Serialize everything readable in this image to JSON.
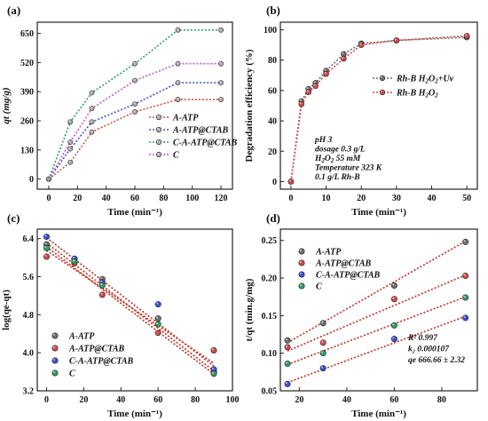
{
  "colors": {
    "a_atp": "#c8553d",
    "a_atp_ctab": "#3d4fd6",
    "c_a_atp_ctab": "#2e9e62",
    "c": "#c05ad6",
    "rh_uv": "#6e6e6e",
    "rh": "#d24a4a"
  },
  "chart_data": [
    {
      "panel": "(a)",
      "type": "line",
      "xlabel": "Time (min⁻¹)",
      "ylabel": "qt (mg/g)",
      "xlim": [
        -8,
        128
      ],
      "ylim": [
        -45,
        700
      ],
      "xticks": [
        0,
        20,
        40,
        60,
        80,
        100,
        120
      ],
      "yticks": [
        0,
        130,
        260,
        390,
        520,
        650
      ],
      "legend": "right",
      "x": [
        0,
        15,
        30,
        60,
        90,
        120
      ],
      "series": [
        {
          "name": "A-ATP",
          "color_key": "a_atp",
          "values": [
            0,
            75,
            210,
            300,
            355,
            355
          ]
        },
        {
          "name": "A-ATP@CTAB",
          "color_key": "a_atp_ctab",
          "values": [
            0,
            135,
            255,
            335,
            430,
            430
          ]
        },
        {
          "name": "C-A-ATP@CTAB",
          "color_key": "c_a_atp_ctab",
          "values": [
            0,
            255,
            385,
            515,
            665,
            665
          ]
        },
        {
          "name": "C",
          "color_key": "c",
          "values": [
            0,
            165,
            315,
            440,
            515,
            515
          ]
        }
      ]
    },
    {
      "panel": "(b)",
      "type": "line",
      "xlabel": "Time (min⁻¹)",
      "ylabel": "Degradation efficiency (%)",
      "xlim": [
        -3,
        53
      ],
      "ylim": [
        -5,
        105
      ],
      "xticks": [
        0,
        10,
        20,
        30,
        40,
        50
      ],
      "yticks": [
        0,
        20,
        40,
        60,
        80,
        100
      ],
      "legend": "center-right",
      "x": [
        0,
        3,
        5,
        7,
        10,
        15,
        20,
        30,
        50
      ],
      "series": [
        {
          "name": "Rh-B H2O2+Uv",
          "color_key": "rh_uv",
          "values": [
            0,
            53,
            61,
            65,
            73,
            84,
            91,
            93,
            95
          ]
        },
        {
          "name": "Rh-B H2O2",
          "color_key": "rh",
          "values": [
            0,
            51,
            59,
            63,
            71,
            81,
            90,
            93,
            96
          ]
        }
      ],
      "annotations": [
        "pH 3",
        "dosage  0.3 g/L",
        "H2O2 55 mM",
        "Temperature 323 K",
        "0.1 g/L Rh-B"
      ]
    },
    {
      "panel": "(c)",
      "type": "scatter",
      "xlabel": "Time (min⁻¹)",
      "ylabel": "log(qe-qt)",
      "xlim": [
        -5,
        100
      ],
      "ylim": [
        3.2,
        6.6
      ],
      "xticks": [
        0,
        20,
        40,
        60,
        80,
        100
      ],
      "yticks": [
        3.2,
        4.0,
        4.8,
        5.6,
        6.4
      ],
      "legend": "bottom-left",
      "x": [
        0,
        15,
        30,
        60,
        90
      ],
      "series": [
        {
          "name": "A-ATP",
          "color_key": "rh_uv",
          "values": [
            6.28,
            5.95,
            5.55,
            4.72,
            3.6
          ],
          "fit": [
            6.31,
            3.62
          ]
        },
        {
          "name": "A-ATP@CTAB",
          "color_key": "rh",
          "values": [
            6.02,
            5.88,
            5.22,
            4.42,
            4.05
          ],
          "fit": [
            6.15,
            3.78
          ]
        },
        {
          "name": "C-A-ATP@CTAB",
          "color_key": "a_atp_ctab",
          "values": [
            6.44,
            5.98,
            5.48,
            5.02,
            3.65
          ],
          "fit": [
            6.42,
            3.72
          ]
        },
        {
          "name": "C",
          "color_key": "c_a_atp_ctab",
          "values": [
            6.2,
            5.92,
            5.42,
            4.6,
            3.56
          ],
          "fit": [
            6.23,
            3.55
          ]
        }
      ]
    },
    {
      "panel": "(d)",
      "type": "scatter",
      "xlabel": "Time (min⁻¹)",
      "ylabel": "t/qt (min.g/mg)",
      "xlim": [
        12,
        95
      ],
      "ylim": [
        0.05,
        0.265
      ],
      "xticks": [
        20,
        40,
        60,
        80
      ],
      "yticks": [
        0.05,
        0.1,
        0.15,
        0.2,
        0.25
      ],
      "legend": "top-left",
      "x": [
        15,
        30,
        60,
        90
      ],
      "series": [
        {
          "name": "A-ATP",
          "color_key": "rh_uv",
          "values": [
            0.117,
            0.14,
            0.19,
            0.248
          ],
          "fit": [
            0.114,
            0.249
          ]
        },
        {
          "name": "A-ATP@CTAB",
          "color_key": "rh",
          "values": [
            0.108,
            0.114,
            0.172,
            0.203
          ],
          "fit": [
            0.103,
            0.204
          ]
        },
        {
          "name": "C-A-ATP@CTAB",
          "color_key": "a_atp_ctab",
          "values": [
            0.059,
            0.08,
            0.119,
            0.147
          ],
          "fit": [
            0.061,
            0.149
          ]
        },
        {
          "name": "C",
          "color_key": "c_a_atp_ctab",
          "values": [
            0.086,
            0.1,
            0.137,
            0.174
          ],
          "fit": [
            0.085,
            0.175
          ]
        }
      ],
      "annotations": [
        "R² 0.997",
        "k₂ 0.000107",
        "qe   666.66 ± 2.32"
      ]
    }
  ]
}
